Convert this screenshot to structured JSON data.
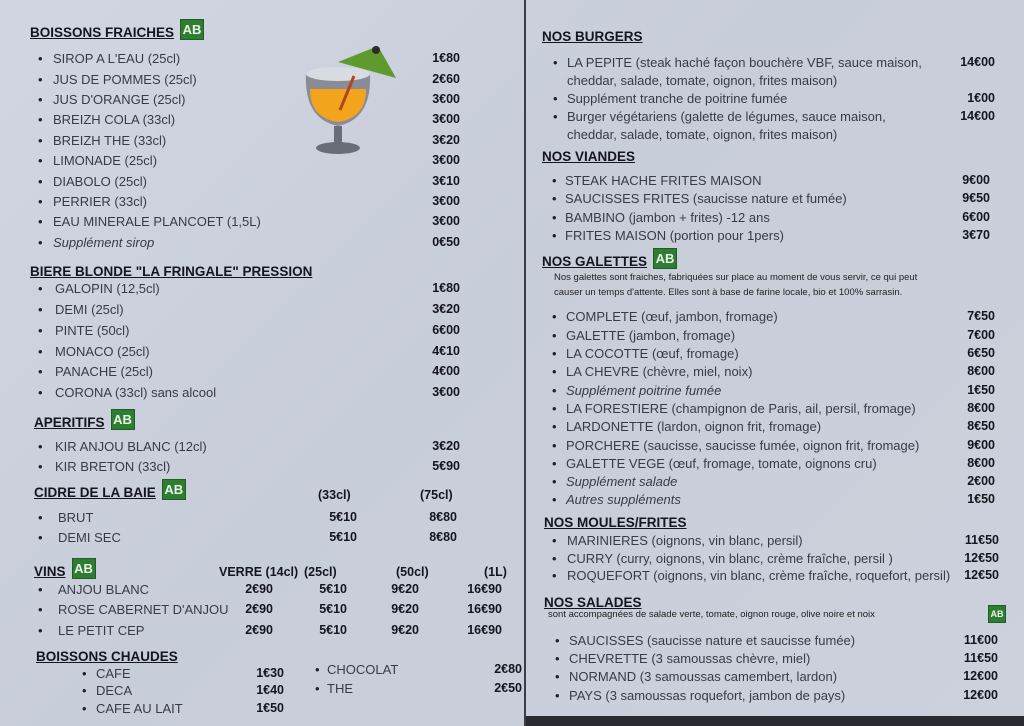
{
  "badge_label": "AB",
  "left": [
    {
      "title": "BOISSONS FRAICHES",
      "bio": true,
      "items": [
        {
          "name": "SIROP A L'EAU (25cl)",
          "prices": [
            "1€80"
          ]
        },
        {
          "name": "JUS DE POMMES (25cl)",
          "prices": [
            "2€60"
          ]
        },
        {
          "name": "JUS D'ORANGE    (25cl)",
          "prices": [
            "3€00"
          ]
        },
        {
          "name": "BREIZH COLA (33cl)",
          "prices": [
            "3€00"
          ]
        },
        {
          "name": "BREIZH THE (33cl)",
          "prices": [
            "3€20"
          ]
        },
        {
          "name": "LIMONADE (25cl)",
          "prices": [
            "3€00"
          ]
        },
        {
          "name": "DIABOLO (25cl)",
          "prices": [
            "3€10"
          ]
        },
        {
          "name": "PERRIER (33cl)",
          "prices": [
            "3€00"
          ]
        },
        {
          "name": "EAU MINERALE PLANCOET (1,5L)",
          "prices": [
            "3€00"
          ]
        },
        {
          "name": "Supplément sirop",
          "prices": [
            "0€50"
          ],
          "italic": true
        }
      ]
    },
    {
      "title": "BIERE BLONDE \"LA FRINGALE\" PRESSION",
      "bio": false,
      "items": [
        {
          "name": "GALOPIN (12,5cl)",
          "prices": [
            "1€80"
          ]
        },
        {
          "name": "DEMI (25cl)",
          "prices": [
            "3€20"
          ]
        },
        {
          "name": "PINTE (50cl)",
          "prices": [
            "6€00"
          ]
        },
        {
          "name": "MONACO (25cl)",
          "prices": [
            "4€10"
          ]
        },
        {
          "name": "PANACHE (25cl)",
          "prices": [
            "4€00"
          ]
        },
        {
          "name": "CORONA (33cl) sans alcool",
          "prices": [
            "3€00"
          ]
        }
      ]
    },
    {
      "title": "APERITIFS",
      "bio": true,
      "items": [
        {
          "name": "KIR ANJOU BLANC (12cl)",
          "prices": [
            "3€20"
          ]
        },
        {
          "name": "KIR BRETON (33cl)",
          "prices": [
            "5€90"
          ]
        }
      ]
    },
    {
      "title": "CIDRE DE LA BAIE",
      "bio": true,
      "columns": [
        "(33cl)",
        "(75cl)"
      ],
      "items": [
        {
          "name": "BRUT",
          "prices": [
            "5€10",
            "8€80"
          ]
        },
        {
          "name": "DEMI SEC",
          "prices": [
            "5€10",
            "8€80"
          ]
        }
      ]
    },
    {
      "title": "VINS",
      "bio": true,
      "columns": [
        "VERRE  (14cl)",
        "(25cl)",
        "(50cl)",
        "(1L)"
      ],
      "items": [
        {
          "name": "ANJOU BLANC",
          "prices": [
            "2€90",
            "5€10",
            "9€20",
            "16€90"
          ]
        },
        {
          "name": "ROSE CABERNET D'ANJOU",
          "prices": [
            "2€90",
            "5€10",
            "9€20",
            "16€90"
          ]
        },
        {
          "name": "LE PETIT CEP",
          "prices": [
            "2€90",
            "5€10",
            "9€20",
            "16€90"
          ]
        }
      ]
    },
    {
      "title": "BOISSONS CHAUDES",
      "bio": false,
      "items": [
        {
          "name": "CAFE",
          "prices": [
            "1€30"
          ]
        },
        {
          "name": "DECA",
          "prices": [
            "1€40"
          ]
        },
        {
          "name": "CAFE AU LAIT",
          "prices": [
            "1€50"
          ]
        },
        {
          "name": "CHOCOLAT",
          "prices": [
            "2€80"
          ]
        },
        {
          "name": "THE",
          "prices": [
            "2€50"
          ]
        }
      ]
    }
  ],
  "right": [
    {
      "title": "NOS BURGERS",
      "bio": false,
      "items": [
        {
          "name": "LA PEPITE (steak haché façon bouchère VBF, sauce maison,",
          "name2": "cheddar, salade, tomate, oignon, frites maison)",
          "prices": [
            "14€00"
          ]
        },
        {
          "name": "Supplément tranche de poitrine fumée",
          "prices": [
            "1€00"
          ]
        },
        {
          "name": "Burger végétariens (galette de légumes, sauce maison,",
          "name2": "cheddar, salade, tomate, oignon, frites maison)",
          "prices": [
            "14€00"
          ]
        }
      ]
    },
    {
      "title": "NOS VIANDES",
      "bio": false,
      "items": [
        {
          "name": "STEAK HACHE FRITES MAISON",
          "prices": [
            "9€00"
          ]
        },
        {
          "name": "SAUCISSES FRITES (saucisse nature et fumée)",
          "prices": [
            "9€50"
          ]
        },
        {
          "name": "BAMBINO (jambon + frites) -12 ans",
          "prices": [
            "6€00"
          ]
        },
        {
          "name": "FRITES MAISON   (portion pour 1pers)",
          "prices": [
            "3€70"
          ]
        }
      ]
    },
    {
      "title": "NOS GALETTES",
      "bio": true,
      "note": [
        "Nos galettes sont fraiches, fabriquées sur place au moment de vous servir, ce qui peut",
        "causer un temps d'attente. Elles sont à base de farine locale, bio et 100% sarrasin."
      ],
      "items": [
        {
          "name": "COMPLETE   (œuf, jambon, fromage)",
          "prices": [
            "7€50"
          ]
        },
        {
          "name": "GALETTE   (jambon, fromage)",
          "prices": [
            "7€00"
          ]
        },
        {
          "name": "LA COCOTTE  (œuf, fromage)",
          "prices": [
            "6€50"
          ]
        },
        {
          "name": "LA CHEVRE   (chèvre, miel, noix)",
          "prices": [
            "8€00"
          ]
        },
        {
          "name": "Supplément poitrine fumée",
          "prices": [
            "1€50"
          ],
          "italic": true
        },
        {
          "name": "LA FORESTIERE  (champignon de Paris, ail, persil, fromage)",
          "prices": [
            "8€00"
          ]
        },
        {
          "name": "LARDONETTE   (lardon, oignon frit, fromage)",
          "prices": [
            "8€50"
          ]
        },
        {
          "name": "PORCHERE   (saucisse, saucisse fumée, oignon frit, fromage)",
          "prices": [
            "9€00"
          ]
        },
        {
          "name": "GALETTE VEGE   (œuf, fromage, tomate, oignons cru)",
          "prices": [
            "8€00"
          ]
        },
        {
          "name": "Supplément salade",
          "prices": [
            "2€00"
          ],
          "italic": true
        },
        {
          "name": "Autres suppléments",
          "prices": [
            "1€50"
          ],
          "italic": true
        }
      ]
    },
    {
      "title": "NOS MOULES/FRITES",
      "bio": false,
      "items": [
        {
          "name": "MARINIERES  (oignons, vin blanc, persil)",
          "prices": [
            "11€50"
          ]
        },
        {
          "name": "CURRY  (curry, oignons, vin blanc, crème fraîche, persil )",
          "prices": [
            "12€50"
          ]
        },
        {
          "name": "ROQUEFORT  (oignons, vin blanc, crème fraîche, roquefort, persil)",
          "prices": [
            "12€50"
          ]
        }
      ]
    },
    {
      "title": "NOS SALADES",
      "bio": false,
      "note": [
        "sont accompagnées de salade verte, tomate, oignon rouge, olive noire et noix"
      ],
      "note_bio": true,
      "items": [
        {
          "name": "SAUCISSES (saucisse nature et saucisse fumée)",
          "prices": [
            "11€00"
          ]
        },
        {
          "name": "CHEVRETTE (3 samoussas chèvre, miel)",
          "prices": [
            "11€50"
          ]
        },
        {
          "name": "NORMAND  (3 samoussas camembert, lardon)",
          "prices": [
            "12€00"
          ]
        },
        {
          "name": "PAYS (3 samoussas roquefort, jambon de pays)",
          "prices": [
            "12€00"
          ]
        }
      ]
    }
  ],
  "colors": {
    "background": "#ccd1dc",
    "bio_badge": "#2f7d32",
    "text": "#2b2d3a"
  }
}
